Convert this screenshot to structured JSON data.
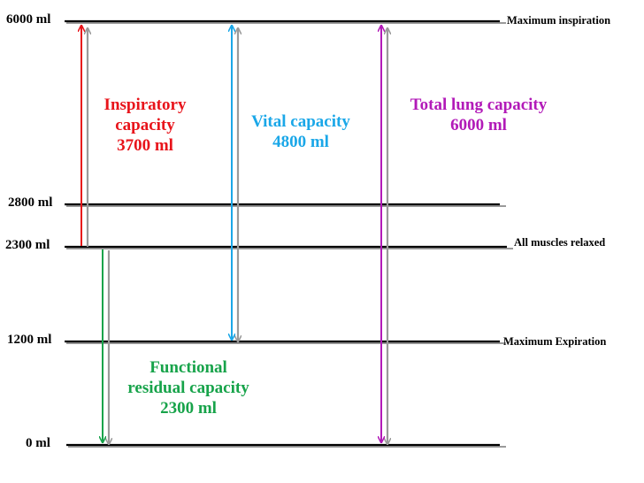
{
  "levels": {
    "l6000": "6000 ml",
    "l2800": "2800 ml",
    "l2300": "2300 ml",
    "l1200": "1200 ml",
    "l0": "0 ml"
  },
  "annotations": {
    "max_inspiration": "Maximum inspiration",
    "muscles_relaxed": "All muscles relaxed",
    "max_expiration": "Maximum Expiration"
  },
  "capacities": {
    "inspiratory": {
      "line1": "Inspiratory",
      "line2": "capacity",
      "line3": "3700 ml"
    },
    "vital": {
      "line1": "Vital capacity",
      "line2": "4800 ml"
    },
    "total": {
      "line1": "Total lung capacity",
      "line2": "6000 ml"
    },
    "frc": {
      "line1": "Functional",
      "line2": "residual capacity",
      "line3": "2300 ml"
    }
  },
  "colors": {
    "inspiratory": "#e8141b",
    "vital": "#1aa7e8",
    "total": "#b21ab8",
    "frc": "#17a34a",
    "shadow": "#9a9a9a",
    "line": "#000000"
  }
}
